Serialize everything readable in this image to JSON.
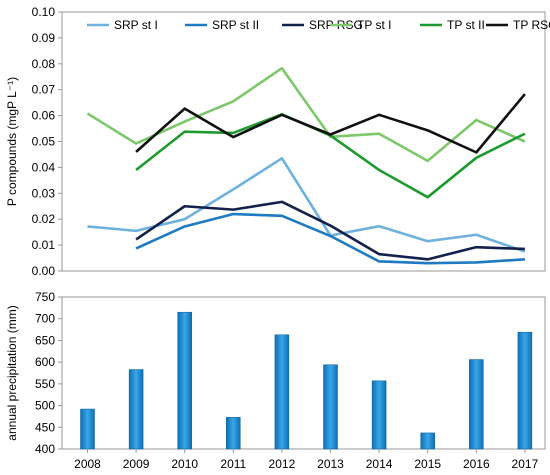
{
  "chart_data": [
    {
      "type": "line",
      "ylabel": "P compounds (mgP L⁻¹)",
      "ylim": [
        0,
        0.1
      ],
      "yticks": [
        "0.00",
        "0.01",
        "0.02",
        "0.03",
        "0.04",
        "0.05",
        "0.06",
        "0.07",
        "0.08",
        "0.09",
        "0.10"
      ],
      "x": [
        2008,
        2009,
        2010,
        2011,
        2012,
        2013,
        2014,
        2015,
        2016,
        2017
      ],
      "grid": false,
      "legend_position": "top",
      "series": [
        {
          "name": "SRP st I",
          "color": "#6fb1dd",
          "values": [
            0.0172,
            0.0155,
            0.02,
            0.0315,
            0.0435,
            0.0137,
            0.0173,
            0.0115,
            0.014,
            0.0075
          ]
        },
        {
          "name": "SRP st II",
          "color": "#1f7bc1",
          "values": [
            null,
            0.0087,
            0.0172,
            0.022,
            0.0213,
            0.0135,
            0.0037,
            0.003,
            0.0033,
            0.0045
          ]
        },
        {
          "name": "SRP RSG",
          "color": "#14214d",
          "values": [
            null,
            0.0122,
            0.025,
            0.0237,
            0.0267,
            0.0175,
            0.0065,
            0.0045,
            0.0092,
            0.0085
          ]
        },
        {
          "name": "TP st I",
          "color": "#7cc86a",
          "values": [
            0.0608,
            0.0492,
            0.0577,
            0.0655,
            0.0783,
            0.0518,
            0.053,
            0.0425,
            0.0583,
            0.05
          ]
        },
        {
          "name": "TP st II",
          "color": "#1e9a2e",
          "values": [
            null,
            0.039,
            0.0538,
            0.0533,
            0.0605,
            0.0523,
            0.039,
            0.0285,
            0.0437,
            0.053
          ]
        },
        {
          "name": "TP RSG",
          "color": "#111111",
          "values": [
            null,
            0.046,
            0.0627,
            0.0517,
            0.0603,
            0.0527,
            0.0603,
            0.0543,
            0.0458,
            0.0683
          ]
        }
      ]
    },
    {
      "type": "bar",
      "ylabel": "annual precipitation (mm)",
      "ylim": [
        400,
        750
      ],
      "yticks": [
        "400",
        "450",
        "500",
        "550",
        "600",
        "650",
        "700",
        "750"
      ],
      "categories": [
        "2008",
        "2009",
        "2010",
        "2011",
        "2012",
        "2013",
        "2014",
        "2015",
        "2016",
        "2017"
      ],
      "values": [
        492,
        583,
        715,
        473,
        663,
        594,
        557,
        437,
        606,
        669
      ],
      "bar_color": "#1a8fd6",
      "grid": false
    }
  ]
}
